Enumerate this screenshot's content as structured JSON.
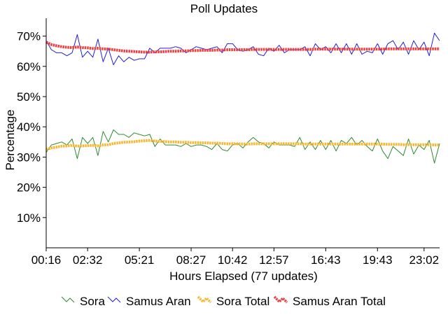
{
  "chart_data": {
    "type": "line",
    "title": "Poll Updates",
    "xlabel": "Hours Elapsed (77 updates)",
    "ylabel": "Percentage",
    "ylim": [
      0,
      75
    ],
    "yticks": [
      10,
      20,
      30,
      40,
      50,
      60,
      70
    ],
    "ytick_labels": [
      "10%",
      "20%",
      "30%",
      "40%",
      "50%",
      "60%",
      "70%"
    ],
    "xtick_labels": [
      "00:16",
      "02:32",
      "05:21",
      "08:27",
      "10:42",
      "12:57",
      "16:43",
      "19:43",
      "23:02"
    ],
    "xtick_indices": [
      0,
      8,
      18,
      28,
      36,
      44,
      54,
      64,
      73
    ],
    "legend_position": "bottom",
    "series": [
      {
        "name": "Sora",
        "color": "#2e8b2e",
        "style": "thin",
        "values": [
          31.5,
          34.0,
          34.5,
          35.0,
          34.0,
          36.0,
          29.5,
          36.5,
          34.5,
          36.5,
          30.5,
          38.5,
          35.0,
          39.0,
          37.5,
          37.5,
          36.5,
          38.0,
          37.5,
          37.0,
          37.5,
          33.5,
          36.0,
          34.0,
          34.0,
          34.0,
          33.5,
          34.5,
          33.5,
          34.0,
          34.0,
          33.5,
          32.5,
          34.5,
          32.5,
          32.0,
          34.0,
          34.5,
          33.0,
          35.0,
          36.5,
          35.0,
          34.5,
          33.0,
          35.0,
          34.0,
          34.0,
          34.0,
          33.5,
          36.5,
          32.5,
          35.0,
          32.5,
          35.5,
          32.5,
          35.5,
          32.0,
          35.5,
          34.5,
          36.5,
          34.0,
          35.5,
          33.5,
          32.0,
          36.0,
          32.0,
          29.5,
          33.5,
          32.0,
          30.5,
          36.0,
          31.0,
          34.0,
          32.5,
          35.5,
          28.0,
          34.5
        ]
      },
      {
        "name": "Samus Aran",
        "color": "#2020d8",
        "style": "thin",
        "values": [
          68.5,
          65.5,
          64.5,
          64.5,
          63.5,
          64.5,
          70.5,
          63.0,
          65.0,
          63.0,
          69.0,
          61.5,
          66.0,
          60.5,
          63.5,
          61.5,
          63.0,
          62.0,
          62.5,
          62.5,
          66.0,
          64.5,
          66.0,
          66.0,
          66.0,
          66.5,
          66.0,
          64.5,
          65.5,
          66.5,
          66.0,
          65.5,
          66.0,
          66.5,
          64.5,
          67.5,
          67.5,
          65.5,
          65.0,
          65.5,
          66.5,
          64.0,
          63.5,
          66.0,
          65.0,
          67.0,
          64.5,
          65.5,
          65.5,
          65.5,
          66.5,
          63.5,
          67.5,
          65.5,
          66.5,
          64.5,
          67.5,
          64.5,
          67.5,
          64.0,
          67.5,
          64.0,
          65.0,
          64.5,
          67.5,
          64.0,
          67.5,
          68.5,
          65.5,
          68.0,
          64.0,
          68.5,
          65.5,
          68.0,
          63.5,
          71.0,
          68.5
        ]
      },
      {
        "name": "Sora Total",
        "color": "#f7b731",
        "style": "thick",
        "values": [
          32.5,
          33.0,
          33.3,
          33.6,
          33.7,
          33.9,
          33.6,
          33.7,
          33.8,
          33.9,
          33.7,
          34.0,
          34.1,
          34.5,
          34.7,
          34.9,
          35.0,
          35.1,
          35.3,
          35.4,
          35.5,
          35.3,
          35.2,
          35.1,
          35.0,
          35.0,
          34.9,
          34.9,
          34.8,
          34.8,
          34.7,
          34.7,
          34.6,
          34.6,
          34.5,
          34.4,
          34.4,
          34.4,
          34.3,
          34.3,
          34.4,
          34.4,
          34.4,
          34.4,
          34.4,
          34.4,
          34.4,
          34.4,
          34.4,
          34.4,
          34.3,
          34.3,
          34.3,
          34.3,
          34.3,
          34.3,
          34.3,
          34.3,
          34.3,
          34.3,
          34.3,
          34.3,
          34.3,
          34.3,
          34.3,
          34.3,
          34.2,
          34.2,
          34.2,
          34.1,
          34.1,
          34.1,
          34.1,
          34.1,
          34.1,
          34.0,
          34.0
        ]
      },
      {
        "name": "Samus Aran Total",
        "color": "#f03c3c",
        "style": "thick",
        "values": [
          68.0,
          67.2,
          66.8,
          66.5,
          66.3,
          66.2,
          66.4,
          66.2,
          66.1,
          65.9,
          66.0,
          65.8,
          65.7,
          65.5,
          65.3,
          65.1,
          65.0,
          64.9,
          64.8,
          64.7,
          64.7,
          64.8,
          64.8,
          64.9,
          65.0,
          65.0,
          65.1,
          65.1,
          65.2,
          65.2,
          65.3,
          65.3,
          65.3,
          65.4,
          65.4,
          65.5,
          65.5,
          65.5,
          65.5,
          65.5,
          65.6,
          65.6,
          65.6,
          65.6,
          65.6,
          65.6,
          65.6,
          65.6,
          65.6,
          65.6,
          65.6,
          65.6,
          65.7,
          65.7,
          65.7,
          65.7,
          65.7,
          65.7,
          65.7,
          65.7,
          65.7,
          65.7,
          65.7,
          65.7,
          65.7,
          65.7,
          65.8,
          65.8,
          65.8,
          65.8,
          65.8,
          65.8,
          65.8,
          65.8,
          65.8,
          65.8,
          65.8
        ]
      }
    ]
  }
}
